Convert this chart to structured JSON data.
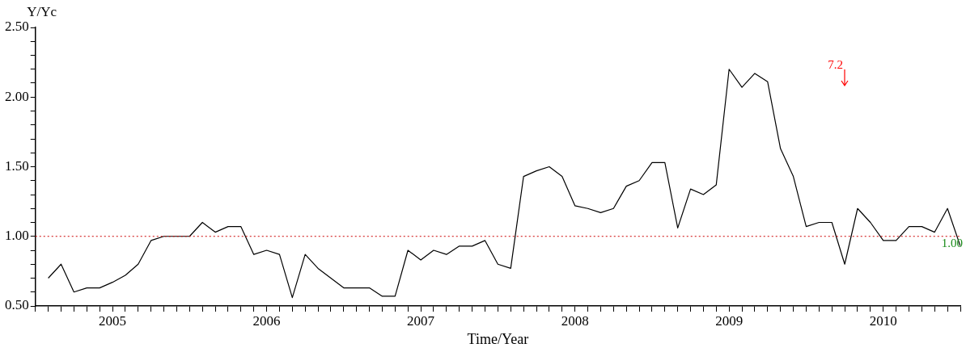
{
  "chart_data": {
    "type": "line",
    "xlabel": "Time/Year",
    "ylabel": "Y/Yc",
    "categories": [
      null,
      null,
      null,
      null,
      null,
      "2005",
      null,
      null,
      null,
      null,
      null,
      null,
      null,
      null,
      null,
      null,
      null,
      "2006",
      null,
      null,
      null,
      null,
      null,
      null,
      null,
      null,
      null,
      null,
      null,
      "2007",
      null,
      null,
      null,
      null,
      null,
      null,
      null,
      null,
      null,
      null,
      null,
      "2008",
      null,
      null,
      null,
      null,
      null,
      null,
      null,
      null,
      null,
      null,
      null,
      "2009",
      null,
      null,
      null,
      null,
      null,
      null,
      null,
      null,
      null,
      null,
      null,
      "2010",
      null,
      null,
      null,
      null,
      null,
      null
    ],
    "series": [
      {
        "color": "#000000",
        "values": [
          0.7,
          0.8,
          0.6,
          0.63,
          0.63,
          0.67,
          0.72,
          0.8,
          0.97,
          1.0,
          1.0,
          1.0,
          1.1,
          1.03,
          1.07,
          1.07,
          0.87,
          0.9,
          0.87,
          0.56,
          0.87,
          0.77,
          0.7,
          0.63,
          0.63,
          0.63,
          0.57,
          0.57,
          0.9,
          0.83,
          0.9,
          0.87,
          0.93,
          0.93,
          0.97,
          0.8,
          0.77,
          1.43,
          1.47,
          1.5,
          1.43,
          1.22,
          1.2,
          1.17,
          1.2,
          1.36,
          1.4,
          1.53,
          1.53,
          1.06,
          1.34,
          1.3,
          1.37,
          2.2,
          2.07,
          2.17,
          2.11,
          1.63,
          1.43,
          1.07,
          1.1,
          1.1,
          0.8,
          1.2,
          1.1,
          0.97,
          0.97,
          1.07,
          1.07,
          1.03,
          1.2,
          0.93
        ]
      }
    ],
    "ylim": [
      0.5,
      2.5
    ],
    "yticks": [
      {
        "value": 0.5,
        "label": "0.50"
      },
      {
        "value": 0.6,
        "label": null
      },
      {
        "value": 0.7,
        "label": null
      },
      {
        "value": 0.8,
        "label": null
      },
      {
        "value": 0.9,
        "label": null
      },
      {
        "value": 1.0,
        "label": "1.00"
      },
      {
        "value": 1.1,
        "label": null
      },
      {
        "value": 1.2,
        "label": null
      },
      {
        "value": 1.3,
        "label": null
      },
      {
        "value": 1.4,
        "label": null
      },
      {
        "value": 1.5,
        "label": "1.50"
      },
      {
        "value": 1.6,
        "label": null
      },
      {
        "value": 1.7,
        "label": null
      },
      {
        "value": 1.8,
        "label": null
      },
      {
        "value": 1.9,
        "label": null
      },
      {
        "value": 2.0,
        "label": "2.00"
      },
      {
        "value": 2.1,
        "label": null
      },
      {
        "value": 2.2,
        "label": null
      },
      {
        "value": 2.3,
        "label": null
      },
      {
        "value": 2.4,
        "label": null
      },
      {
        "value": 2.5,
        "label": "2.50"
      }
    ],
    "ref_lines": [
      {
        "axis": "y",
        "value": 1.0,
        "label": "1.00",
        "color": "#cc0000",
        "line_style": "dotted"
      }
    ],
    "annotations": [
      "7.2"
    ],
    "grid": false,
    "legend": false,
    "marker": "none",
    "line_style": "solid"
  }
}
